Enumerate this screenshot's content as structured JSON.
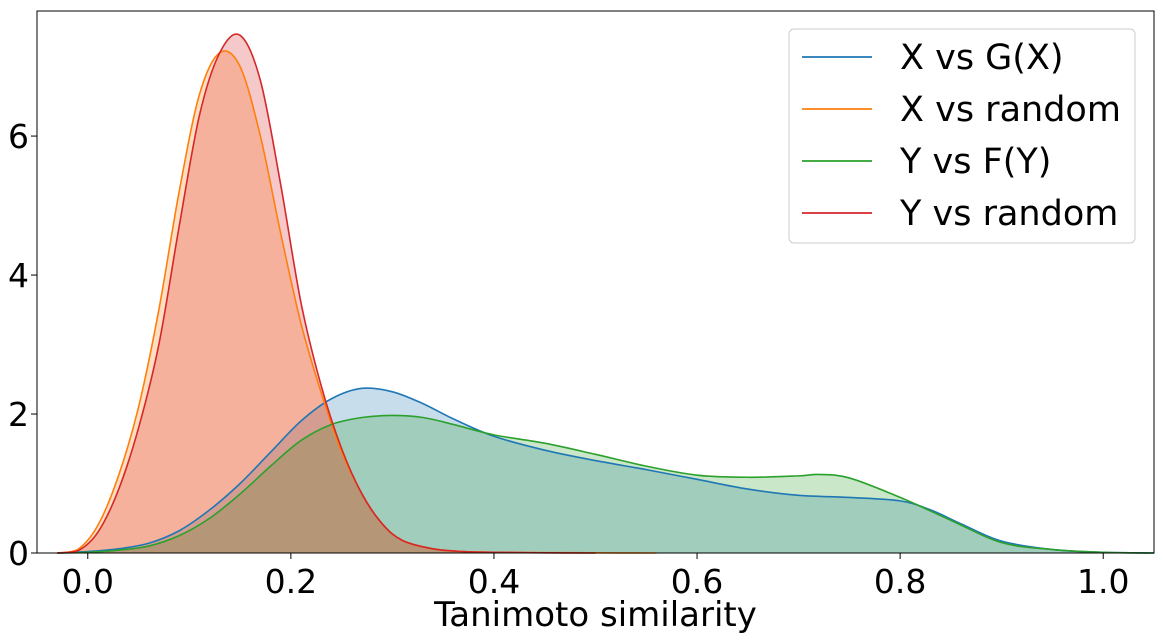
{
  "chart_data": {
    "type": "area",
    "title": "",
    "xlabel": "Tanimoto similarity",
    "ylabel": "",
    "xlim": [
      -0.05,
      1.05
    ],
    "ylim": [
      0,
      7.8
    ],
    "xticks": [
      0.0,
      0.2,
      0.4,
      0.6,
      0.8,
      1.0
    ],
    "xtick_labels": [
      "0.0",
      "0.2",
      "0.4",
      "0.6",
      "0.8",
      "1.0"
    ],
    "yticks": [
      0,
      2,
      4,
      6
    ],
    "ytick_labels": [
      "0",
      "2",
      "4",
      "6"
    ],
    "grid": false,
    "legend_position": "top-right",
    "series": [
      {
        "name": "X vs G(X)",
        "color": "#1f77b4",
        "x": [
          -0.03,
          0.0,
          0.03,
          0.06,
          0.09,
          0.12,
          0.15,
          0.18,
          0.21,
          0.24,
          0.27,
          0.3,
          0.33,
          0.36,
          0.4,
          0.45,
          0.5,
          0.55,
          0.6,
          0.65,
          0.7,
          0.75,
          0.8,
          0.83,
          0.86,
          0.9,
          0.95,
          1.0,
          1.05
        ],
        "y": [
          0.0,
          0.02,
          0.06,
          0.14,
          0.32,
          0.62,
          1.0,
          1.45,
          1.9,
          2.22,
          2.37,
          2.32,
          2.15,
          1.93,
          1.68,
          1.48,
          1.33,
          1.2,
          1.06,
          0.92,
          0.83,
          0.8,
          0.75,
          0.62,
          0.42,
          0.17,
          0.05,
          0.01,
          0.0
        ]
      },
      {
        "name": "X vs random",
        "color": "#ff7f0e",
        "x": [
          -0.03,
          -0.01,
          0.01,
          0.03,
          0.05,
          0.07,
          0.09,
          0.11,
          0.13,
          0.15,
          0.17,
          0.19,
          0.21,
          0.23,
          0.25,
          0.27,
          0.29,
          0.31,
          0.34,
          0.37,
          0.4,
          0.45,
          0.5,
          0.56
        ],
        "y": [
          0.0,
          0.05,
          0.4,
          1.1,
          2.1,
          3.5,
          5.2,
          6.6,
          7.2,
          7.0,
          6.0,
          4.6,
          3.3,
          2.3,
          1.45,
          0.85,
          0.42,
          0.18,
          0.06,
          0.02,
          0.01,
          0.005,
          0.002,
          0.0
        ]
      },
      {
        "name": "Y vs F(Y)",
        "color": "#2ca02c",
        "x": [
          -0.03,
          0.0,
          0.03,
          0.06,
          0.09,
          0.12,
          0.15,
          0.18,
          0.21,
          0.24,
          0.27,
          0.3,
          0.33,
          0.36,
          0.4,
          0.45,
          0.5,
          0.55,
          0.6,
          0.65,
          0.7,
          0.72,
          0.75,
          0.8,
          0.85,
          0.9,
          0.95,
          1.0,
          1.05
        ],
        "y": [
          0.0,
          0.01,
          0.04,
          0.1,
          0.25,
          0.5,
          0.85,
          1.25,
          1.62,
          1.85,
          1.95,
          1.98,
          1.95,
          1.85,
          1.7,
          1.58,
          1.42,
          1.25,
          1.12,
          1.09,
          1.11,
          1.13,
          1.08,
          0.8,
          0.47,
          0.15,
          0.05,
          0.01,
          0.0
        ]
      },
      {
        "name": "Y vs random",
        "color": "#d62728",
        "x": [
          -0.03,
          -0.01,
          0.01,
          0.03,
          0.05,
          0.07,
          0.09,
          0.11,
          0.13,
          0.15,
          0.17,
          0.19,
          0.21,
          0.23,
          0.25,
          0.27,
          0.29,
          0.31,
          0.34,
          0.37,
          0.4,
          0.45,
          0.5
        ],
        "y": [
          0.0,
          0.03,
          0.3,
          0.9,
          1.8,
          3.0,
          4.7,
          6.3,
          7.2,
          7.45,
          6.8,
          5.3,
          3.6,
          2.4,
          1.5,
          0.85,
          0.42,
          0.18,
          0.06,
          0.02,
          0.01,
          0.003,
          0.0
        ]
      }
    ]
  }
}
